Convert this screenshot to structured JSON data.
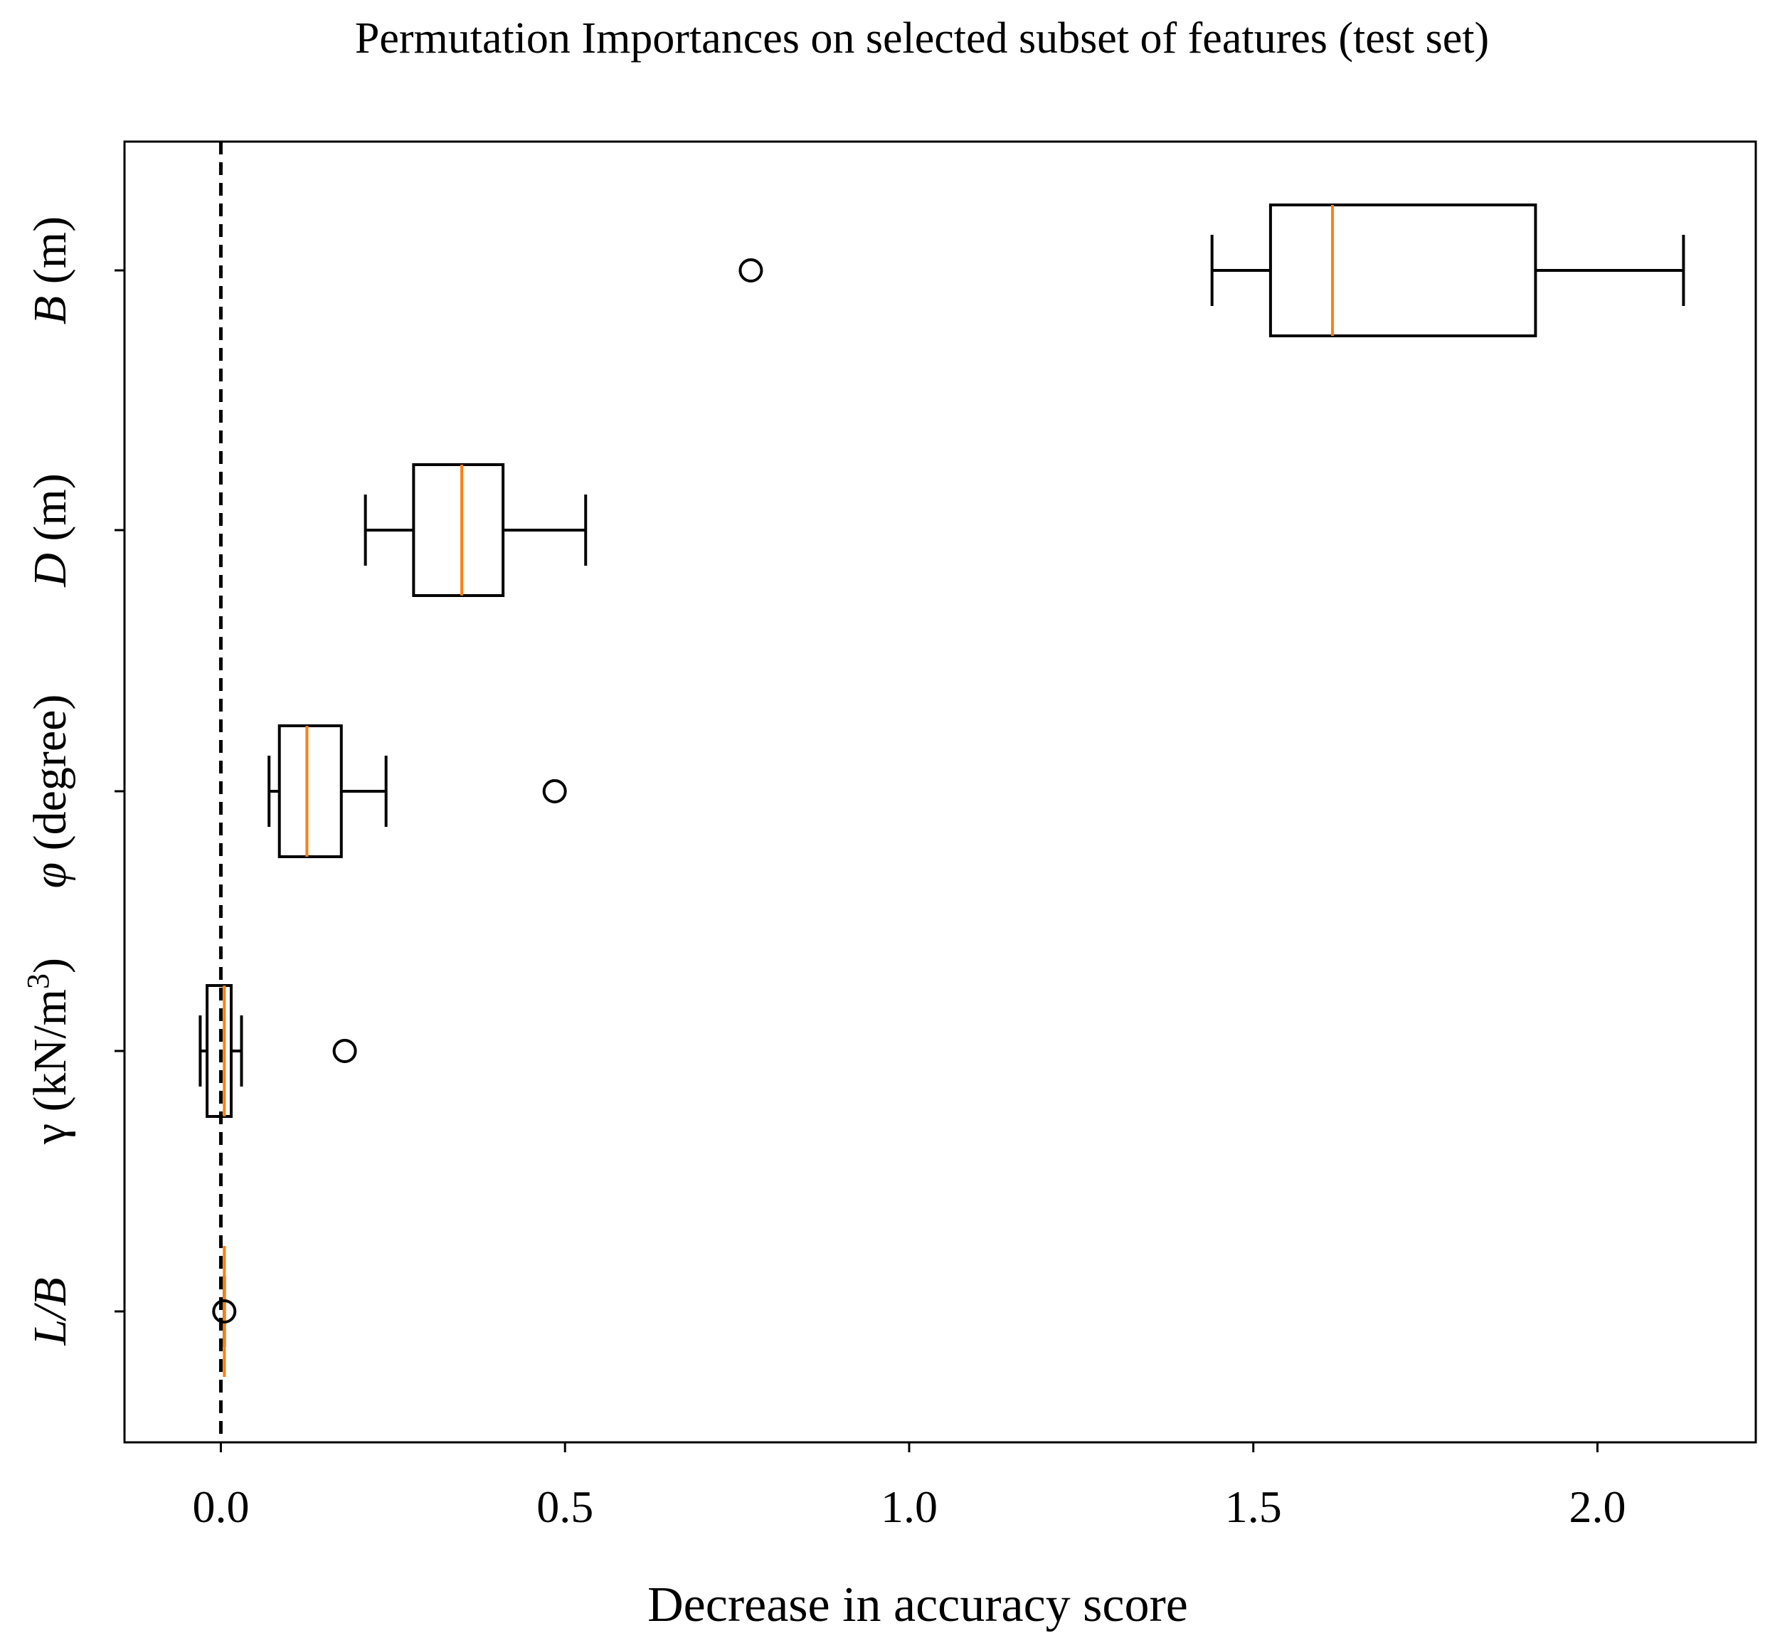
{
  "chart_data": {
    "type": "boxplot",
    "orientation": "horizontal",
    "title": "Permutation Importances on selected subset of features (test set)",
    "xlabel": "Decrease in accuracy score",
    "ylabel": "",
    "xlim": [
      -0.14,
      2.23
    ],
    "xticks": [
      0.0,
      0.5,
      1.0,
      1.5,
      2.0
    ],
    "xtick_labels": [
      "0.0",
      "0.5",
      "1.0",
      "1.5",
      "2.0"
    ],
    "reference_line": {
      "x": 0.0,
      "style": "dashed"
    },
    "colors": {
      "box": "#000000",
      "median": "#ff7f0e",
      "background": "#ffffff"
    },
    "categories": [
      {
        "label": "B",
        "unit": " (m)",
        "italic": true,
        "sup": "",
        "after": "",
        "whisker_low": 1.44,
        "q1": 1.525,
        "median": 1.615,
        "q3": 1.91,
        "whisker_high": 2.125,
        "outliers": [
          0.77
        ]
      },
      {
        "label": "D",
        "unit": " (m)",
        "italic": true,
        "sup": "",
        "after": "",
        "whisker_low": 0.21,
        "q1": 0.28,
        "median": 0.35,
        "q3": 0.41,
        "whisker_high": 0.53,
        "outliers": []
      },
      {
        "label": "φ",
        "unit": " (degree)",
        "italic": true,
        "sup": "",
        "after": "",
        "whisker_low": 0.07,
        "q1": 0.085,
        "median": 0.125,
        "q3": 0.175,
        "whisker_high": 0.24,
        "outliers": [
          0.485
        ]
      },
      {
        "label": "γ",
        "unit": " (kN/m",
        "italic": false,
        "sup": "3",
        "after": ")",
        "whisker_low": -0.03,
        "q1": -0.02,
        "median": 0.005,
        "q3": 0.015,
        "whisker_high": 0.03,
        "outliers": [
          0.18
        ]
      },
      {
        "label": "L/B",
        "unit": "",
        "italic": true,
        "sup": "",
        "after": "",
        "whisker_low": 0.005,
        "q1": 0.005,
        "median": 0.005,
        "q3": 0.005,
        "whisker_high": 0.005,
        "outliers": [
          0.005
        ]
      }
    ]
  }
}
